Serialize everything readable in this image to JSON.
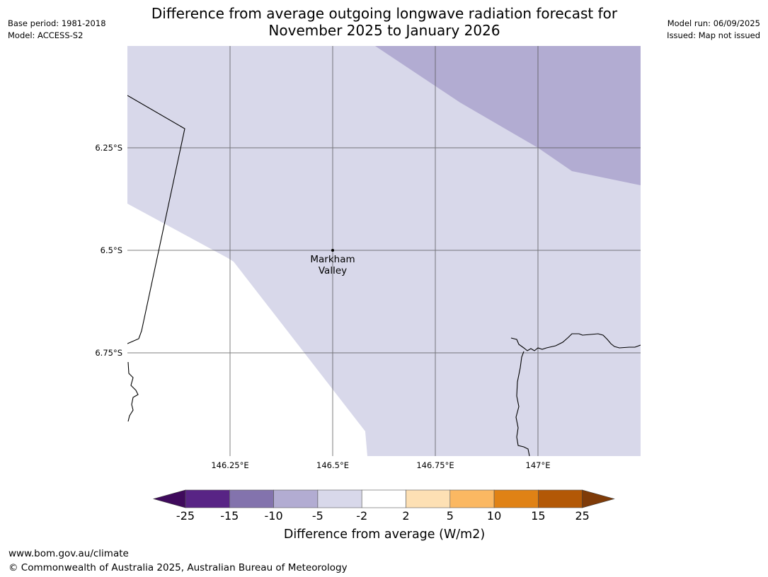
{
  "header": {
    "base_period": "Base period: 1981-2018",
    "model": "Model: ACCESS-S2",
    "model_run": "Model run: 06/09/2025",
    "issued": "Issued: Map not issued",
    "title_line1": "Difference from average outgoing longwave radiation forecast for",
    "title_line2": "November 2025 to January 2026"
  },
  "map": {
    "lat_labels": [
      "6.25°S",
      "6.5°S",
      "6.75°S"
    ],
    "lon_labels": [
      "146.25°E",
      "146.5°E",
      "146.75°E",
      "147°E"
    ],
    "place": {
      "line1": "Markham",
      "line2": "Valley"
    },
    "fill_colors": {
      "light": "#d8d8ea",
      "medium": "#b2acd2"
    }
  },
  "colorbar": {
    "ticks": [
      "-25",
      "-15",
      "-10",
      "-5",
      "-2",
      "2",
      "5",
      "10",
      "15",
      "25"
    ],
    "colors": [
      "#3f0a5c",
      "#582485",
      "#8373ad",
      "#b2acd2",
      "#d8d8ea",
      "#ffffff",
      "#fde0b4",
      "#fbb862",
      "#e08215",
      "#b35806",
      "#7f3b08"
    ],
    "label": "Difference from average (W/m2)"
  },
  "footer": {
    "url": "www.bom.gov.au/climate",
    "copyright": "© Commonwealth of Australia 2025, Australian Bureau of Meteorology"
  }
}
